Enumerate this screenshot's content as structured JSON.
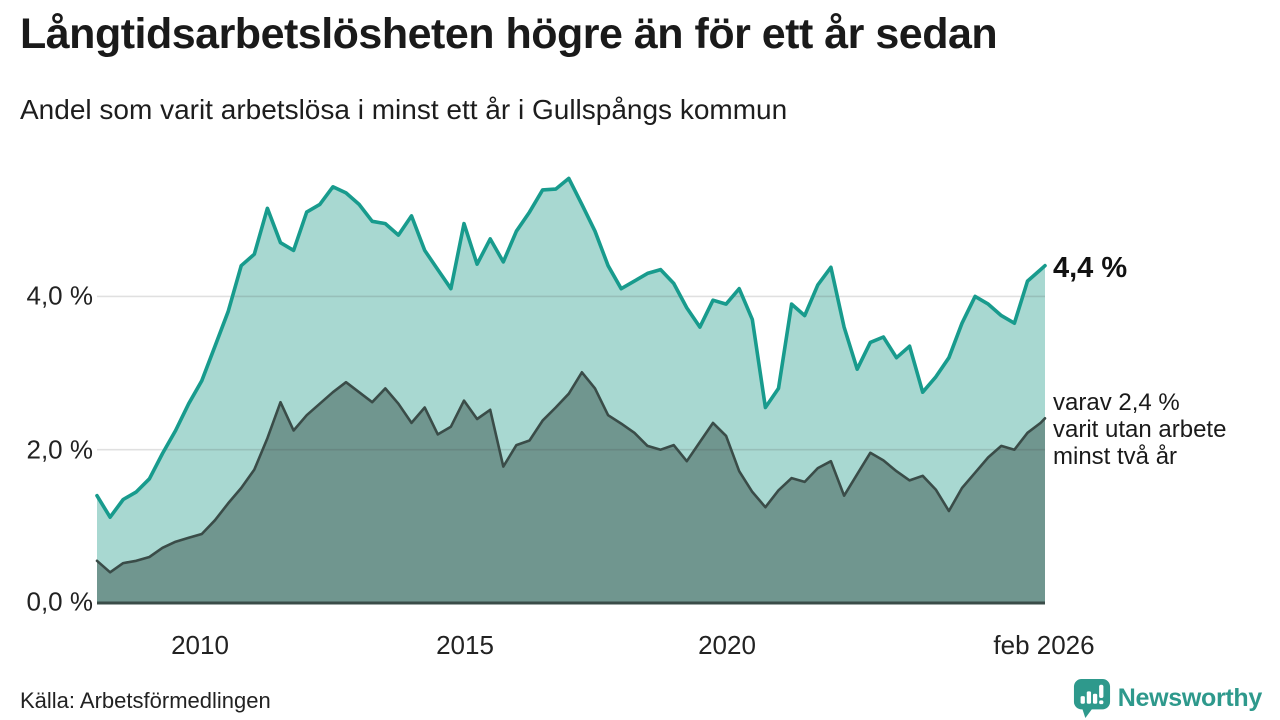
{
  "header": {
    "title": "Långtidsarbetslösheten högre än för ett år sedan",
    "subtitle": "Andel som varit arbetslösa i minst ett år i Gullspångs kommun"
  },
  "chart_data": {
    "type": "area",
    "title": "Långtidsarbetslösheten högre än för ett år sedan",
    "unit": "%",
    "grid": "horizontal-on",
    "legend_position": "right-annotations",
    "x_axis": {
      "ticks": [
        "2010",
        "2015",
        "2020",
        "feb 2026"
      ],
      "tick_years": [
        2010,
        2015,
        2020,
        2026.083
      ],
      "range": [
        2008,
        2026.083
      ]
    },
    "y_axis": {
      "ticks": [
        "0,0 %",
        "2,0 %",
        "4,0 %"
      ],
      "tick_values": [
        0,
        2,
        4
      ],
      "gridline_values": [
        2,
        4
      ],
      "range": [
        0,
        5.8
      ]
    },
    "x": [
      2008,
      2008.25,
      2008.5,
      2008.75,
      2009,
      2009.25,
      2009.5,
      2009.75,
      2010,
      2010.25,
      2010.5,
      2010.75,
      2011,
      2011.25,
      2011.5,
      2011.75,
      2012,
      2012.25,
      2012.5,
      2012.75,
      2013,
      2013.25,
      2013.5,
      2013.75,
      2014,
      2014.25,
      2014.5,
      2014.75,
      2015,
      2015.25,
      2015.5,
      2015.75,
      2016,
      2016.25,
      2016.5,
      2016.75,
      2017,
      2017.25,
      2017.5,
      2017.75,
      2018,
      2018.25,
      2018.5,
      2018.75,
      2019,
      2019.25,
      2019.5,
      2019.75,
      2020,
      2020.25,
      2020.5,
      2020.75,
      2021,
      2021.25,
      2021.5,
      2021.75,
      2022,
      2022.25,
      2022.5,
      2022.75,
      2023,
      2023.25,
      2023.5,
      2023.75,
      2024,
      2024.25,
      2024.5,
      2024.75,
      2025,
      2025.25,
      2025.5,
      2025.75,
      2026,
      2026.083
    ],
    "series": [
      {
        "name": "Andel som varit arbetslösa i minst ett år",
        "line_color": "#189b8d",
        "fill_color": "#a8d8d1",
        "last_value": "4,4 %",
        "values": [
          1.4,
          1.12,
          1.35,
          1.45,
          1.62,
          1.95,
          2.25,
          2.6,
          2.9,
          3.35,
          3.8,
          4.4,
          4.55,
          5.15,
          4.7,
          4.6,
          5.1,
          5.2,
          5.43,
          5.35,
          5.2,
          4.98,
          4.95,
          4.8,
          5.05,
          4.6,
          4.35,
          4.1,
          4.95,
          4.42,
          4.75,
          4.45,
          4.85,
          5.1,
          5.39,
          5.4,
          5.54,
          5.2,
          4.85,
          4.4,
          4.1,
          4.2,
          4.3,
          4.35,
          4.17,
          3.85,
          3.6,
          3.95,
          3.9,
          4.1,
          3.7,
          2.55,
          2.8,
          3.9,
          3.75,
          4.15,
          4.38,
          3.6,
          3.05,
          3.4,
          3.47,
          3.2,
          3.35,
          2.75,
          2.95,
          3.2,
          3.65,
          4.0,
          3.9,
          3.75,
          3.65,
          4.2,
          4.35,
          4.4
        ]
      },
      {
        "name": "varav utan arbete minst två år",
        "line_color": "#3a4c48",
        "fill_color": "#70968f",
        "last_value": "2,4 %",
        "values": [
          0.55,
          0.4,
          0.52,
          0.55,
          0.6,
          0.72,
          0.8,
          0.85,
          0.9,
          1.08,
          1.3,
          1.5,
          1.74,
          2.15,
          2.62,
          2.25,
          2.45,
          2.6,
          2.75,
          2.88,
          2.75,
          2.62,
          2.8,
          2.6,
          2.35,
          2.55,
          2.2,
          2.3,
          2.64,
          2.4,
          2.52,
          1.78,
          2.06,
          2.12,
          2.38,
          2.55,
          2.73,
          3.01,
          2.8,
          2.45,
          2.34,
          2.22,
          2.05,
          2.0,
          2.06,
          1.85,
          2.1,
          2.35,
          2.18,
          1.72,
          1.45,
          1.25,
          1.47,
          1.63,
          1.58,
          1.76,
          1.85,
          1.4,
          1.68,
          1.96,
          1.86,
          1.72,
          1.6,
          1.66,
          1.48,
          1.2,
          1.5,
          1.7,
          1.9,
          2.05,
          2.0,
          2.22,
          2.35,
          2.41
        ]
      }
    ],
    "annotations": {
      "total_label": "4,4 %",
      "two_year_label_lines": [
        "varav 2,4 %",
        "varit utan arbete",
        "minst två år"
      ]
    }
  },
  "footer": {
    "source": "Källa: Arbetsförmedlingen",
    "brand": "Newsworthy",
    "brand_color": "#2e998c"
  }
}
